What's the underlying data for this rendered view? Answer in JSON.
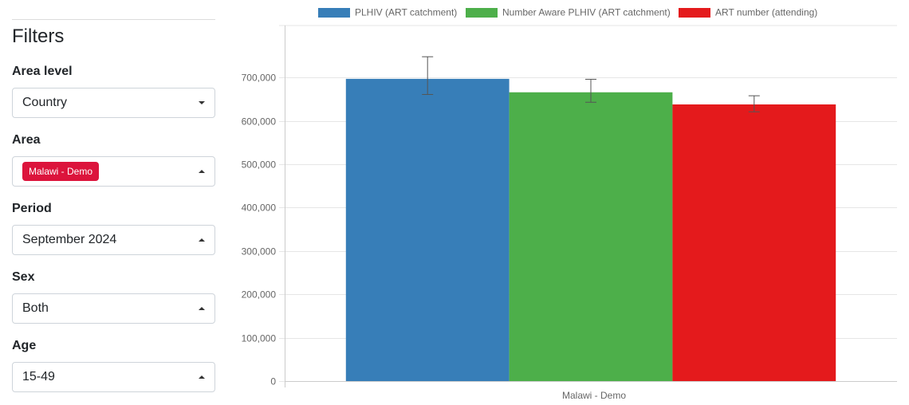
{
  "sidebar": {
    "title": "Filters",
    "filters": [
      {
        "label": "Area level",
        "value": "Country"
      },
      {
        "label": "Area",
        "value": "Malawi - Demo"
      },
      {
        "label": "Period",
        "value": "September 2024"
      },
      {
        "label": "Sex",
        "value": "Both"
      },
      {
        "label": "Age",
        "value": "15-49"
      }
    ]
  },
  "chart_data": {
    "type": "bar",
    "title": "",
    "xlabel": "",
    "ylabel": "",
    "categories": [
      "Malawi - Demo"
    ],
    "ylim": [
      0,
      820000
    ],
    "yticks": [
      0,
      100000,
      200000,
      300000,
      400000,
      500000,
      600000,
      700000
    ],
    "ytick_labels": [
      "0",
      "100,000",
      "200,000",
      "300,000",
      "400,000",
      "500,000",
      "600,000",
      "700,000"
    ],
    "grid": true,
    "legend_position": "top-center",
    "series": [
      {
        "name": "PLHIV (ART catchment)",
        "color": "#377eb8",
        "values": [
          697000
        ],
        "error_low": [
          661000
        ],
        "error_high": [
          748000
        ]
      },
      {
        "name": "Number Aware PLHIV (ART catchment)",
        "color": "#4daf4a",
        "values": [
          666000
        ],
        "error_low": [
          643000
        ],
        "error_high": [
          696000
        ]
      },
      {
        "name": "ART number (attending)",
        "color": "#e41a1c",
        "values": [
          638000
        ],
        "error_low": [
          621000
        ],
        "error_high": [
          658000
        ]
      }
    ]
  }
}
